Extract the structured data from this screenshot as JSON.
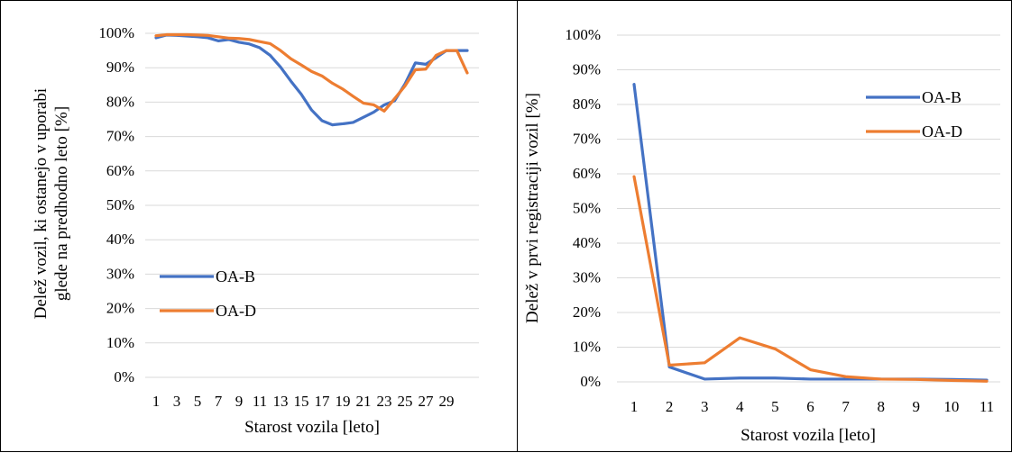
{
  "chart_data": [
    {
      "type": "line",
      "title": "",
      "xlabel": "Starost vozila [leto]",
      "ylabel": [
        "Delež vozil, ki ostanejo v uporabi",
        "glede na predhodno leto [%]"
      ],
      "x": [
        1,
        2,
        3,
        4,
        5,
        6,
        7,
        8,
        9,
        10,
        11,
        12,
        13,
        14,
        15,
        16,
        17,
        18,
        19,
        20,
        21,
        22,
        23,
        24,
        25,
        26,
        27,
        28,
        29,
        30,
        31
      ],
      "x_tick_labels": [
        "1",
        "3",
        "5",
        "7",
        "9",
        "11",
        "13",
        "15",
        "17",
        "19",
        "21",
        "23",
        "25",
        "27",
        "29"
      ],
      "y_ticks": [
        0,
        10,
        20,
        30,
        40,
        50,
        60,
        70,
        80,
        90,
        100
      ],
      "y_tick_labels": [
        "0%",
        "10%",
        "20%",
        "30%",
        "40%",
        "50%",
        "60%",
        "70%",
        "80%",
        "90%",
        "100%"
      ],
      "ylim": [
        0,
        100
      ],
      "grid": "horizontal",
      "legend": "center-left",
      "series": [
        {
          "name": "OA-B",
          "color": "#4472C4",
          "values": [
            98.7,
            99.5,
            99.4,
            99.2,
            99.0,
            98.7,
            97.8,
            98.2,
            97.4,
            96.9,
            95.8,
            93.6,
            90.2,
            86.1,
            82.3,
            77.7,
            74.6,
            73.4,
            73.7,
            74.1,
            75.6,
            77.1,
            79.2,
            80.4,
            85.3,
            91.4,
            91.0,
            92.9,
            95.0,
            95.0,
            95.0
          ]
        },
        {
          "name": "OA-D",
          "color": "#ED7D31",
          "values": [
            99.3,
            99.6,
            99.6,
            99.6,
            99.5,
            99.4,
            99.0,
            98.6,
            98.5,
            98.2,
            97.6,
            97.0,
            95.0,
            92.6,
            90.8,
            88.9,
            87.6,
            85.5,
            83.8,
            81.7,
            79.7,
            79.2,
            77.4,
            81.0,
            84.7,
            89.4,
            89.6,
            93.6,
            95.0,
            95.0,
            88.5
          ]
        }
      ]
    },
    {
      "type": "line",
      "title": "",
      "xlabel": "Starost vozila [leto]",
      "ylabel": [
        "Delež v prvi registraciji vozil [%]"
      ],
      "x": [
        1,
        2,
        3,
        4,
        5,
        6,
        7,
        8,
        9,
        10,
        11
      ],
      "x_tick_labels": [
        "1",
        "2",
        "3",
        "4",
        "5",
        "6",
        "7",
        "8",
        "9",
        "10",
        "11"
      ],
      "y_ticks": [
        0,
        10,
        20,
        30,
        40,
        50,
        60,
        70,
        80,
        90,
        100
      ],
      "y_tick_labels": [
        "0%",
        "10%",
        "20%",
        "30%",
        "40%",
        "50%",
        "60%",
        "70%",
        "80%",
        "90%",
        "100%"
      ],
      "ylim": [
        0,
        100
      ],
      "grid": "horizontal",
      "legend": "top-right",
      "series": [
        {
          "name": "OA-B",
          "color": "#4472C4",
          "values": [
            85.8,
            4.3,
            0.8,
            1.1,
            1.1,
            0.8,
            0.8,
            0.8,
            0.8,
            0.7,
            0.5
          ]
        },
        {
          "name": "OA-D",
          "color": "#ED7D31",
          "values": [
            59.2,
            4.8,
            5.5,
            12.7,
            9.5,
            3.5,
            1.5,
            0.8,
            0.7,
            0.4,
            0.2
          ]
        }
      ]
    }
  ]
}
